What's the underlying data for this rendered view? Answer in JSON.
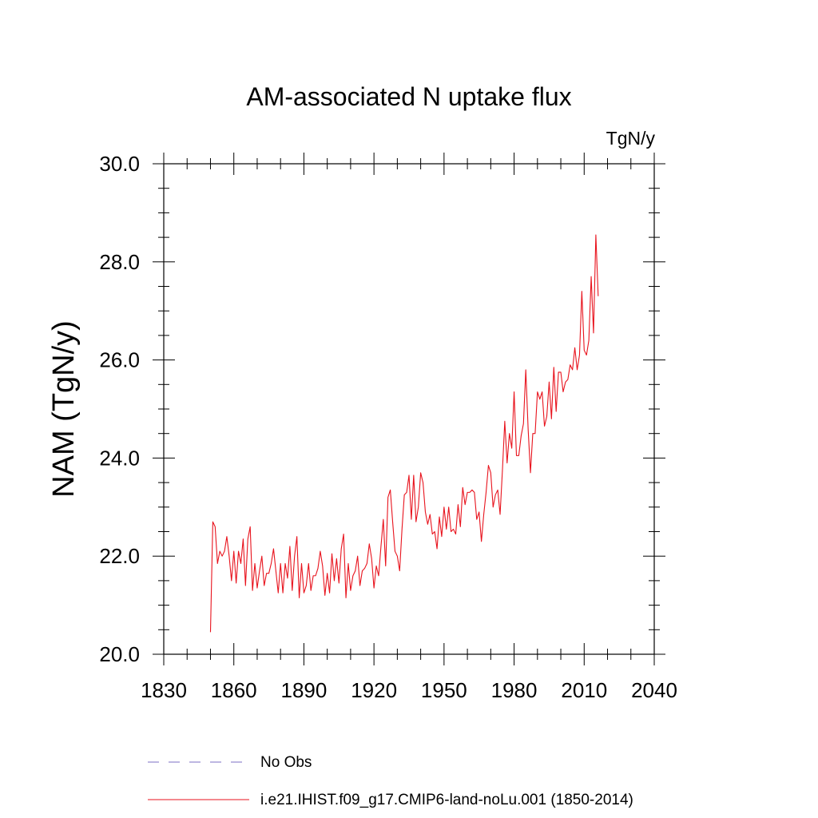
{
  "chart_data": {
    "type": "line",
    "title": "AM-associated N uptake flux",
    "units_label": "TgN/y",
    "ylabel": "NAM  (TgN/y)",
    "xlabel": "",
    "xlim": [
      1830,
      2040
    ],
    "ylim": [
      20.0,
      30.0
    ],
    "x_ticks": [
      1830,
      1860,
      1890,
      1920,
      1950,
      1980,
      2010,
      2040
    ],
    "x_tick_labels": [
      "1830",
      "1860",
      "1890",
      "1920",
      "1950",
      "1980",
      "2010",
      "2040"
    ],
    "y_ticks": [
      20.0,
      22.0,
      24.0,
      26.0,
      28.0,
      30.0
    ],
    "y_tick_labels": [
      "20.0",
      "22.0",
      "24.0",
      "26.0",
      "28.0",
      "30.0"
    ],
    "grid": false,
    "legend_position": "bottom",
    "legend": [
      {
        "label": "No Obs",
        "color": "#7b6fc4",
        "style": "dashed"
      },
      {
        "label": "i.e21.IHIST.f09_g17.CMIP6-land-noLu.001 (1850-2014)",
        "color": "#e8131d",
        "style": "solid"
      }
    ],
    "series": [
      {
        "name": "i.e21.IHIST.f09_g17.CMIP6-land-noLu.001 (1850-2014)",
        "color": "#e8131d",
        "x_start": 1850,
        "x_step": 1,
        "values": [
          20.45,
          22.7,
          22.6,
          21.85,
          22.1,
          22.0,
          22.1,
          22.4,
          22.0,
          21.5,
          22.1,
          21.45,
          22.1,
          21.85,
          22.35,
          21.4,
          22.35,
          22.6,
          21.3,
          21.85,
          21.35,
          21.7,
          22.0,
          21.4,
          21.65,
          21.65,
          21.85,
          22.15,
          21.7,
          21.25,
          21.85,
          21.25,
          21.85,
          21.55,
          22.2,
          21.3,
          22.0,
          22.4,
          21.15,
          21.85,
          21.25,
          21.4,
          21.85,
          21.3,
          21.6,
          21.6,
          21.75,
          22.1,
          21.8,
          21.2,
          21.65,
          21.25,
          22.05,
          21.5,
          21.95,
          21.45,
          22.15,
          22.45,
          21.15,
          21.85,
          21.3,
          21.6,
          21.7,
          22.0,
          21.4,
          21.7,
          21.75,
          21.85,
          22.25,
          21.95,
          21.35,
          21.8,
          21.6,
          22.2,
          22.75,
          21.8,
          23.2,
          23.35,
          22.7,
          22.1,
          22.0,
          21.7,
          22.55,
          23.25,
          23.3,
          23.65,
          22.75,
          23.65,
          22.7,
          23.0,
          23.7,
          23.5,
          22.9,
          22.65,
          22.85,
          22.45,
          22.5,
          22.15,
          22.8,
          22.4,
          23.0,
          22.55,
          23.0,
          22.5,
          22.55,
          22.45,
          23.05,
          22.6,
          23.4,
          23.05,
          23.3,
          23.3,
          23.35,
          23.3,
          22.75,
          22.9,
          22.3,
          22.85,
          23.3,
          23.85,
          23.7,
          23.0,
          23.25,
          23.35,
          22.85,
          23.75,
          24.75,
          23.9,
          24.5,
          24.2,
          25.35,
          24.05,
          24.05,
          24.45,
          24.7,
          25.8,
          24.6,
          23.7,
          24.5,
          24.5,
          25.35,
          25.2,
          25.35,
          24.65,
          24.85,
          25.55,
          24.8,
          25.85,
          24.95,
          25.75,
          25.75,
          25.35,
          25.55,
          25.6,
          25.9,
          25.8,
          26.25,
          25.8,
          26.1,
          27.4,
          26.2,
          26.1,
          26.4,
          27.7,
          26.55,
          28.55,
          27.3
        ]
      }
    ]
  }
}
